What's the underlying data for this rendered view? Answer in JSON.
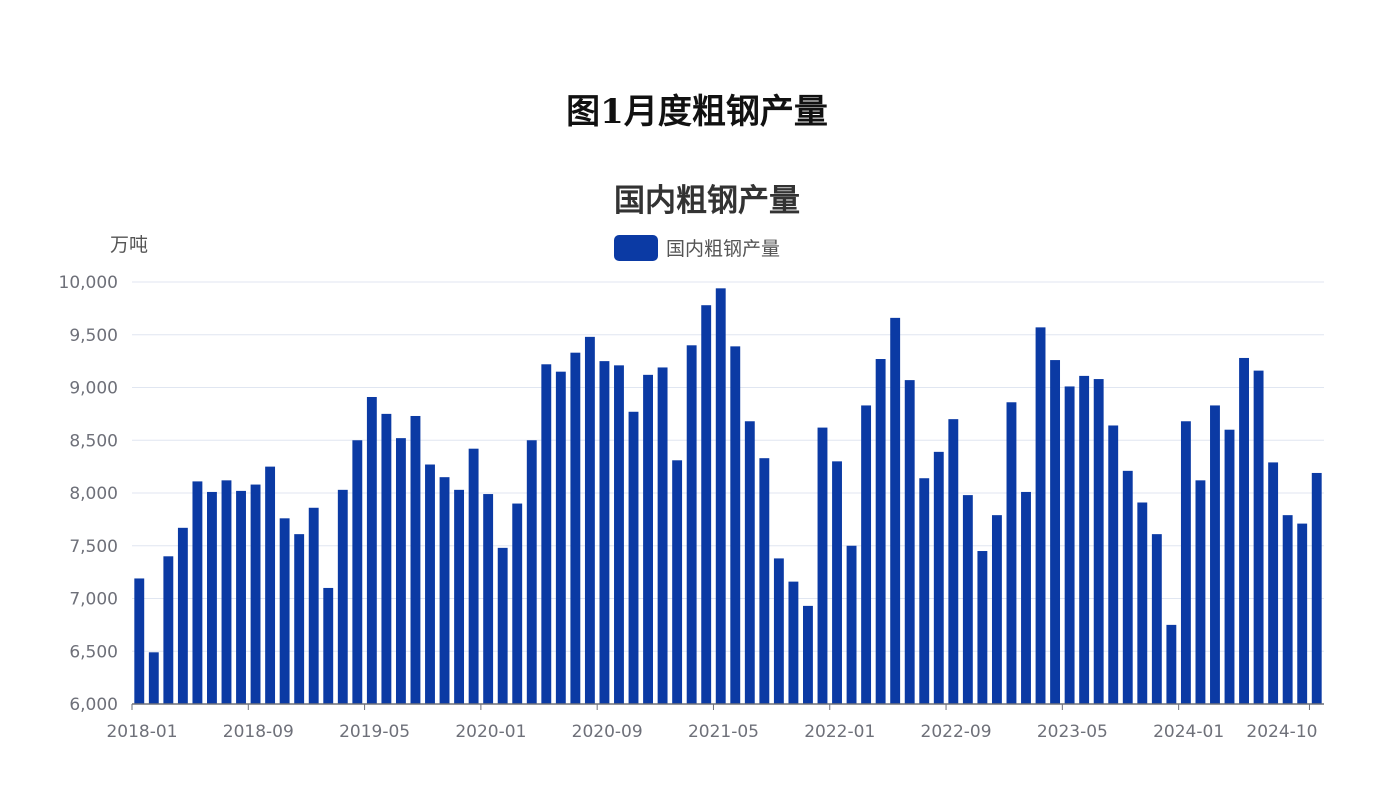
{
  "figure_title": "图1月度粗钢产量",
  "chart_data": {
    "type": "bar",
    "title": "国内粗钢产量",
    "ylabel": "万吨",
    "legend": {
      "position": "top-center",
      "entries": [
        "国内粗钢产量"
      ]
    },
    "color": "#0b3aa4",
    "ylim": [
      6000,
      10000
    ],
    "y_ticks": [
      "6,000",
      "6,500",
      "7,000",
      "7,500",
      "8,000",
      "8,500",
      "9,000",
      "9,500",
      "10,000"
    ],
    "x_tick_labels": [
      "2018-01",
      "2018-09",
      "2019-05",
      "2020-01",
      "2020-09",
      "2021-05",
      "2022-01",
      "2022-09",
      "2023-05",
      "2024-01",
      "2024-10"
    ],
    "series": [
      {
        "name": "国内粗钢产量",
        "categories": [
          "2018-01",
          "2018-02",
          "2018-03",
          "2018-04",
          "2018-05",
          "2018-06",
          "2018-07",
          "2018-08",
          "2018-09",
          "2018-10",
          "2018-11",
          "2018-12",
          "2019-01",
          "2019-02",
          "2019-03",
          "2019-04",
          "2019-05",
          "2019-06",
          "2019-07",
          "2019-08",
          "2019-09",
          "2019-10",
          "2019-11",
          "2019-12",
          "2020-01",
          "2020-02",
          "2020-03",
          "2020-04",
          "2020-05",
          "2020-06",
          "2020-07",
          "2020-08",
          "2020-09",
          "2020-10",
          "2020-11",
          "2020-12",
          "2021-01",
          "2021-02",
          "2021-03",
          "2021-04",
          "2021-05",
          "2021-06",
          "2021-07",
          "2021-08",
          "2021-09",
          "2021-10",
          "2021-11",
          "2021-12",
          "2022-01",
          "2022-02",
          "2022-03",
          "2022-04",
          "2022-05",
          "2022-06",
          "2022-07",
          "2022-08",
          "2022-09",
          "2022-10",
          "2022-11",
          "2022-12",
          "2023-01",
          "2023-02",
          "2023-03",
          "2023-04",
          "2023-05",
          "2023-06",
          "2023-07",
          "2023-08",
          "2023-09",
          "2023-10",
          "2023-11",
          "2023-12",
          "2024-01",
          "2024-02",
          "2024-03",
          "2024-04",
          "2024-05",
          "2024-06",
          "2024-07",
          "2024-08",
          "2024-09",
          "2024-10"
        ],
        "values": [
          7190,
          6490,
          7400,
          7670,
          8110,
          8010,
          8120,
          8020,
          8080,
          8250,
          7760,
          7610,
          7860,
          7100,
          8030,
          8500,
          8910,
          8750,
          8520,
          8730,
          8270,
          8150,
          8030,
          8420,
          7990,
          7480,
          7900,
          8500,
          9220,
          9150,
          9330,
          9480,
          9250,
          9210,
          8770,
          9120,
          9190,
          8310,
          9400,
          9780,
          9940,
          9390,
          8680,
          8330,
          7380,
          7160,
          6930,
          8620,
          8300,
          7500,
          8830,
          9270,
          9660,
          9070,
          8140,
          8390,
          8700,
          7980,
          7450,
          7790,
          8860,
          8010,
          9570,
          9260,
          9010,
          9110,
          9080,
          8640,
          8210,
          7910,
          7610,
          6750,
          8680,
          8120,
          8830,
          8600,
          9280,
          9160,
          8290,
          7790,
          7710,
          8190
        ]
      }
    ]
  }
}
